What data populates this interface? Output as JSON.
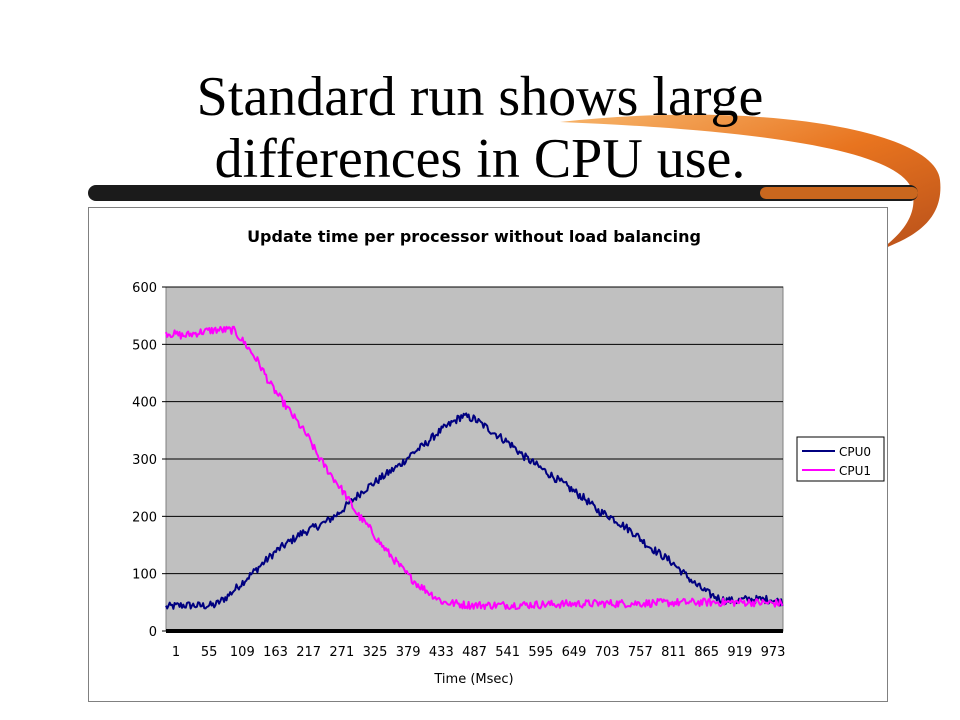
{
  "slide": {
    "title_line1": "Standard run shows large",
    "title_line2": "differences in CPU use."
  },
  "colors": {
    "title_bar": "#1b1b1b",
    "swoosh_dark": "#b8501a",
    "swoosh_mid": "#e8741f",
    "swoosh_light": "#f7b56b",
    "plot_bg": "#c0c0c0",
    "cpu0": "#000080",
    "cpu1": "#ff00ff"
  },
  "chart_data": {
    "type": "line",
    "title": "Update time per processor without load balancing",
    "xlabel": "Time (Msec)",
    "ylabel": "",
    "ylim": [
      0,
      600
    ],
    "y_ticks": [
      0,
      100,
      200,
      300,
      400,
      500,
      600
    ],
    "xlim": [
      1,
      1000
    ],
    "x_tick_labels": [
      "1",
      "55",
      "109",
      "163",
      "217",
      "271",
      "325",
      "379",
      "433",
      "487",
      "541",
      "595",
      "649",
      "703",
      "757",
      "811",
      "865",
      "919",
      "973"
    ],
    "grid": "horizontal",
    "legend_position": "right",
    "series": [
      {
        "name": "CPU0",
        "color": "#000080",
        "x": [
          1,
          30,
          60,
          80,
          100,
          120,
          140,
          160,
          180,
          200,
          220,
          240,
          260,
          280,
          300,
          320,
          340,
          360,
          380,
          400,
          420,
          440,
          460,
          480,
          500,
          520,
          540,
          560,
          580,
          600,
          620,
          640,
          660,
          680,
          700,
          720,
          740,
          760,
          780,
          800,
          820,
          840,
          860,
          880,
          900,
          920,
          940,
          960,
          980,
          1000
        ],
        "values": [
          42,
          45,
          44,
          45,
          60,
          80,
          100,
          120,
          140,
          155,
          170,
          180,
          190,
          205,
          225,
          245,
          260,
          275,
          290,
          310,
          325,
          345,
          360,
          375,
          370,
          355,
          340,
          325,
          305,
          290,
          275,
          260,
          245,
          230,
          210,
          200,
          185,
          170,
          150,
          135,
          120,
          100,
          80,
          65,
          55,
          52,
          55,
          55,
          55,
          50
        ]
      },
      {
        "name": "CPU1",
        "color": "#ff00ff",
        "x": [
          1,
          30,
          60,
          80,
          100,
          110,
          130,
          150,
          170,
          190,
          210,
          230,
          250,
          270,
          290,
          310,
          330,
          350,
          370,
          390,
          410,
          430,
          450,
          470,
          480,
          500,
          550,
          600,
          650,
          700,
          750,
          800,
          850,
          900,
          950,
          1000
        ],
        "values": [
          520,
          515,
          522,
          525,
          525,
          525,
          500,
          470,
          430,
          400,
          370,
          340,
          300,
          270,
          240,
          205,
          180,
          150,
          125,
          100,
          80,
          65,
          50,
          48,
          46,
          45,
          45,
          46,
          47,
          48,
          48,
          49,
          50,
          50,
          50,
          48
        ]
      }
    ]
  }
}
